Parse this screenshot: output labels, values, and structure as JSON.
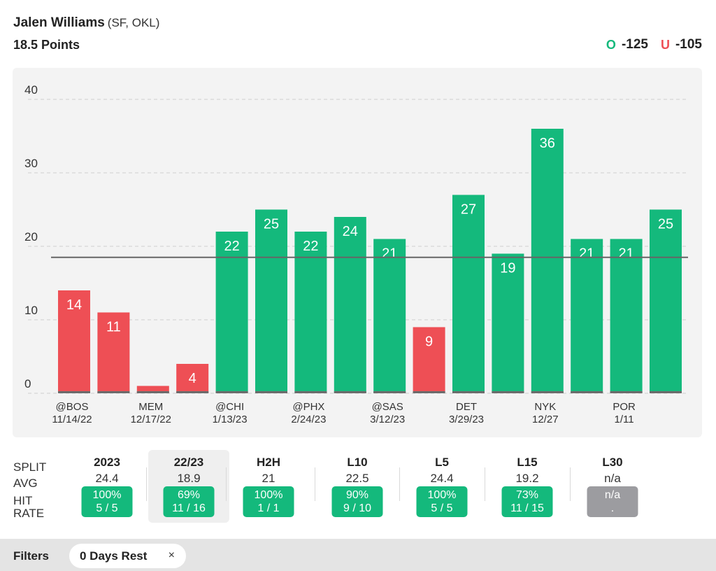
{
  "header": {
    "player": "Jalen Williams",
    "team": "(SF, OKL)",
    "line": "18.5 Points"
  },
  "odds": {
    "over_label": "O",
    "over_value": "-125",
    "under_label": "U",
    "under_value": "-105"
  },
  "colors": {
    "over": "#14b97c",
    "under": "#ee4f55",
    "na": "#9c9ca0"
  },
  "chart_data": {
    "type": "bar",
    "title": "",
    "ylim": [
      0,
      40
    ],
    "yticks": [
      0,
      10,
      20,
      30,
      40
    ],
    "threshold": 18.5,
    "values": [
      14,
      11,
      1,
      4,
      22,
      25,
      22,
      24,
      21,
      9,
      27,
      19,
      36,
      21,
      21,
      25
    ],
    "value_labels": [
      "14",
      "11",
      "",
      "4",
      "22",
      "25",
      "22",
      "24",
      "21",
      "9",
      "27",
      "19",
      "36",
      "21",
      "21",
      "25"
    ],
    "x_labels": [
      {
        "bar": 0,
        "opp": "@BOS",
        "date": "11/14/22"
      },
      {
        "bar": 2,
        "opp": "MEM",
        "date": "12/17/22"
      },
      {
        "bar": 4,
        "opp": "@CHI",
        "date": "1/13/23"
      },
      {
        "bar": 6,
        "opp": "@PHX",
        "date": "2/24/23"
      },
      {
        "bar": 8,
        "opp": "@SAS",
        "date": "3/12/23"
      },
      {
        "bar": 10,
        "opp": "DET",
        "date": "3/29/23"
      },
      {
        "bar": 12,
        "opp": "NYK",
        "date": "12/27"
      },
      {
        "bar": 14,
        "opp": "POR",
        "date": "1/11"
      }
    ],
    "grid": true
  },
  "splits": {
    "labels": {
      "split": "SPLIT",
      "avg": "AVG",
      "hit": "HIT",
      "rate": "RATE"
    },
    "columns": [
      {
        "name": "2023",
        "avg": "24.4",
        "pct": "100%",
        "ratio": "5 / 5",
        "active": false,
        "na": false
      },
      {
        "name": "22/23",
        "avg": "18.9",
        "pct": "69%",
        "ratio": "11 / 16",
        "active": true,
        "na": false
      },
      {
        "name": "H2H",
        "avg": "21",
        "pct": "100%",
        "ratio": "1 / 1",
        "active": false,
        "na": false
      },
      {
        "name": "L10",
        "avg": "22.5",
        "pct": "90%",
        "ratio": "9 / 10",
        "active": false,
        "na": false
      },
      {
        "name": "L5",
        "avg": "24.4",
        "pct": "100%",
        "ratio": "5 / 5",
        "active": false,
        "na": false
      },
      {
        "name": "L15",
        "avg": "19.2",
        "pct": "73%",
        "ratio": "11 / 15",
        "active": false,
        "na": false
      },
      {
        "name": "L30",
        "avg": "n/a",
        "pct": "n/a",
        "ratio": ".",
        "active": false,
        "na": true
      }
    ]
  },
  "filters": {
    "title": "Filters",
    "chip_label": "0 Days Rest",
    "chip_close": "×"
  }
}
